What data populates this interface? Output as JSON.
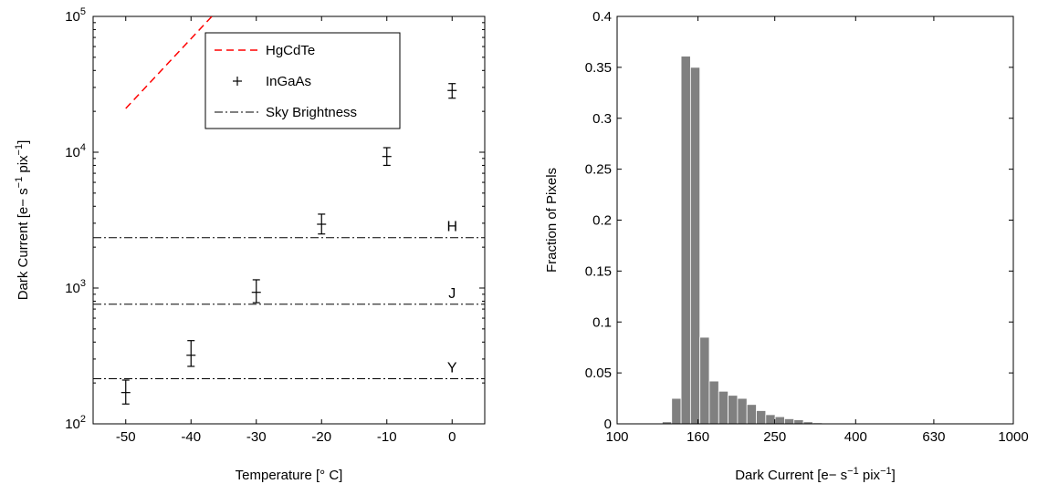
{
  "chart_data": [
    {
      "type": "scatter",
      "xlabel": "Temperature [° C]",
      "ylabel_main": "Dark Current [e− s",
      "ylabel_exp1": "−1",
      "ylabel_mid": " pix",
      "ylabel_exp2": "−1",
      "ylabel_end": "]",
      "xlim": [
        -55,
        5
      ],
      "ylim": [
        100,
        100000
      ],
      "yscale": "log",
      "xticks": [
        -50,
        -40,
        -30,
        -20,
        -10,
        0
      ],
      "xtick_labels": [
        "-50",
        "-40",
        "-30",
        "-20",
        "-10",
        "0"
      ],
      "yticks": [
        {
          "value": 100,
          "base": "10",
          "exp": "2"
        },
        {
          "value": 1000,
          "base": "10",
          "exp": "3"
        },
        {
          "value": 10000,
          "base": "10",
          "exp": "4"
        },
        {
          "value": 100000,
          "base": "10",
          "exp": "5"
        }
      ],
      "legend": {
        "placement": "top-center",
        "entries": [
          "HgCdTe",
          "InGaAs",
          "Sky Brightness"
        ]
      },
      "series": [
        {
          "name": "HgCdTe",
          "style": "dashed",
          "color": "#ff0000",
          "x": [
            -50,
            -36
          ],
          "y": [
            21000,
            110000
          ]
        },
        {
          "name": "InGaAs",
          "style": "errorbar",
          "color": "#000000",
          "points": [
            {
              "x": -50,
              "y": 170,
              "ylo": 140,
              "yhi": 210
            },
            {
              "x": -40,
              "y": 320,
              "ylo": 265,
              "yhi": 410
            },
            {
              "x": -30,
              "y": 930,
              "ylo": 780,
              "yhi": 1150
            },
            {
              "x": -20,
              "y": 2950,
              "ylo": 2500,
              "yhi": 3500
            },
            {
              "x": -10,
              "y": 9300,
              "ylo": 8000,
              "yhi": 10800
            },
            {
              "x": 0,
              "y": 28500,
              "ylo": 25000,
              "yhi": 32000
            }
          ]
        },
        {
          "name": "Sky Brightness",
          "style": "dashdot",
          "color": "#000000",
          "lines": [
            {
              "label": "H",
              "y": 2350
            },
            {
              "label": "J",
              "y": 760
            },
            {
              "label": "Y",
              "y": 215
            }
          ]
        }
      ]
    },
    {
      "type": "bar",
      "xlabel_main": "Dark Current [e− s",
      "xlabel_exp1": "−1",
      "xlabel_mid": " pix",
      "xlabel_exp2": "−1",
      "xlabel_end": "]",
      "ylabel": "Fraction of Pixels",
      "xscale": "log",
      "xlim": [
        100,
        1000
      ],
      "ylim": [
        0,
        0.4
      ],
      "xticks": [
        100,
        160,
        250,
        400,
        630,
        1000
      ],
      "xtick_labels": [
        "100",
        "160",
        "250",
        "400",
        "630",
        "1000"
      ],
      "yticks": [
        0,
        0.05,
        0.1,
        0.15,
        0.2,
        0.25,
        0.3,
        0.35,
        0.4
      ],
      "ytick_labels": [
        "0",
        "0.05",
        "0.1",
        "0.15",
        "0.2",
        "0.25",
        "0.3",
        "0.35",
        "0.4"
      ],
      "bar_color": "#808080",
      "bin_start": 130,
      "bin_ratio": 1.0562,
      "values": [
        0.002,
        0.025,
        0.361,
        0.35,
        0.085,
        0.042,
        0.032,
        0.028,
        0.025,
        0.019,
        0.013,
        0.009,
        0.007,
        0.005,
        0.004,
        0.002,
        0.001
      ]
    }
  ]
}
